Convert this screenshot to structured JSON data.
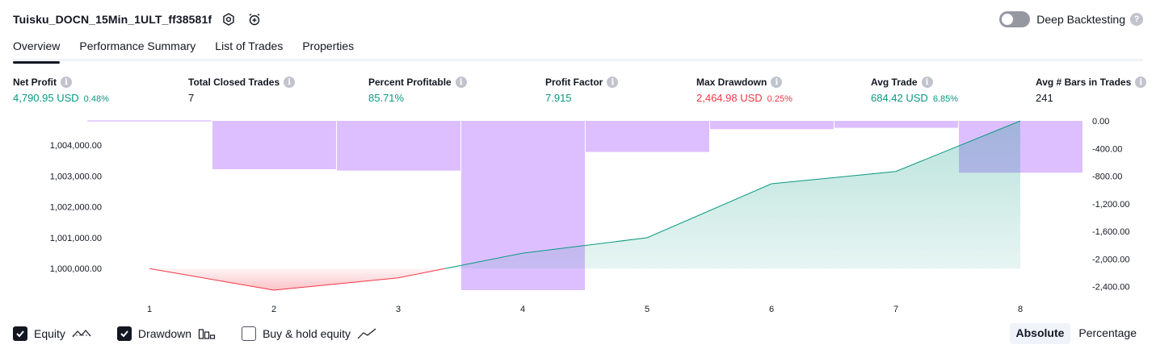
{
  "header": {
    "strategy_name": "Tuisku_DOCN_15Min_1ULT_ff38581f",
    "deep_backtesting_label": "Deep Backtesting",
    "help": "?"
  },
  "tabs": [
    {
      "label": "Overview",
      "active": true
    },
    {
      "label": "Performance Summary",
      "active": false
    },
    {
      "label": "List of Trades",
      "active": false
    },
    {
      "label": "Properties",
      "active": false
    }
  ],
  "metrics": {
    "net_profit": {
      "label": "Net Profit",
      "value": "4,790.95 USD",
      "sub": "0.48%"
    },
    "total_closed_trades": {
      "label": "Total Closed Trades",
      "value": "7"
    },
    "percent_profitable": {
      "label": "Percent Profitable",
      "value": "85.71%"
    },
    "profit_factor": {
      "label": "Profit Factor",
      "value": "7.915"
    },
    "max_drawdown": {
      "label": "Max Drawdown",
      "value": "2,464.98 USD",
      "sub": "0.25%"
    },
    "avg_trade": {
      "label": "Avg Trade",
      "value": "684.42 USD",
      "sub": "6.85%"
    },
    "avg_bars": {
      "label": "Avg # Bars in Trades",
      "value": "241"
    }
  },
  "info_glyph": "i",
  "chart_data": {
    "type": "area",
    "x": [
      1,
      2,
      3,
      4,
      5,
      6,
      7,
      8
    ],
    "x_tick_labels": [
      "1",
      "2",
      "3",
      "4",
      "5",
      "6",
      "7",
      "8"
    ],
    "series": [
      {
        "name": "Equity",
        "axis": "left",
        "values": [
          1000000,
          999300,
          999700,
          1000500,
          1001000,
          1002750,
          1003150,
          1004790
        ],
        "color_pos": "#089981",
        "color_neg": "#f23645"
      },
      {
        "name": "Drawdown",
        "axis": "right",
        "values": [
          0,
          -700,
          -720,
          -2450,
          -450,
          -120,
          -100,
          -750
        ],
        "color": "#d1aaff"
      }
    ],
    "left_ticks": [
      1000000,
      1001000,
      1002000,
      1003000,
      1004000
    ],
    "left_tick_labels": [
      "1,000,000.00",
      "1,001,000.00",
      "1,002,000.00",
      "1,003,000.00",
      "1,004,000.00"
    ],
    "left_ylim": [
      999300,
      1004790
    ],
    "right_ticks": [
      0,
      -400,
      -800,
      -1200,
      -1600,
      -2000,
      -2400
    ],
    "right_tick_labels": [
      "0.00",
      "-400.00",
      "-800.00",
      "-1,200.00",
      "-1,600.00",
      "-2,000.00",
      "-2,400.00"
    ],
    "right_ylim": [
      -2450,
      0
    ],
    "baseline": 1000000
  },
  "footer": {
    "equity_label": "Equity",
    "drawdown_label": "Drawdown",
    "buy_hold_label": "Buy & hold equity",
    "absolute_label": "Absolute",
    "percentage_label": "Percentage"
  }
}
